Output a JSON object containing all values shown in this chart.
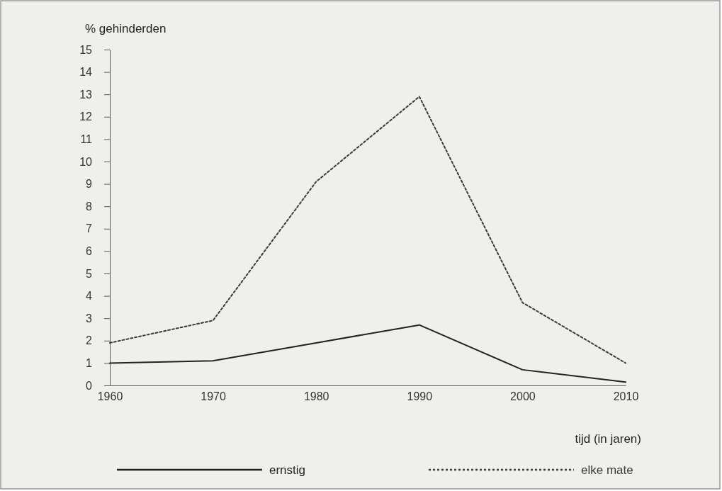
{
  "chart_data": {
    "type": "line",
    "ylabel": "% gehinderden",
    "xlabel": "tijd  (in jaren)",
    "x": [
      1960,
      1970,
      1980,
      1990,
      2000,
      2010
    ],
    "xlim": [
      1960,
      2010
    ],
    "xticks": [
      1960,
      1970,
      1980,
      1990,
      2000,
      2010
    ],
    "ylim": [
      0,
      15
    ],
    "yticks": [
      0,
      1,
      2,
      3,
      4,
      5,
      6,
      7,
      8,
      9,
      10,
      11,
      12,
      13,
      14,
      15
    ],
    "grid": false,
    "legend": "bottom",
    "marker": "none",
    "series": [
      {
        "name": "ernstig",
        "color": "#222222",
        "line_style": "solid",
        "values": [
          1.0,
          1.1,
          1.9,
          2.7,
          0.7,
          0.15
        ]
      },
      {
        "name": "elke mate",
        "color": "#3a3a3a",
        "line_style": "dotted",
        "values": [
          1.9,
          2.9,
          9.1,
          12.9,
          3.7,
          1.0
        ]
      }
    ]
  }
}
